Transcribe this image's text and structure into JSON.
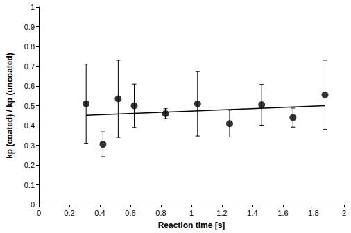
{
  "chart_data": {
    "type": "scatter",
    "x_label": "Reaction time [s]",
    "y_label": "kp (coated) / kp (uncoated)",
    "x": [
      0.31,
      0.42,
      0.52,
      0.625,
      0.83,
      1.04,
      1.25,
      1.46,
      1.665,
      1.875
    ],
    "values": [
      0.51,
      0.305,
      0.535,
      0.5,
      0.46,
      0.51,
      0.41,
      0.505,
      0.44,
      0.555
    ],
    "errors": [
      0.2,
      0.063,
      0.195,
      0.11,
      0.025,
      0.163,
      0.068,
      0.103,
      0.048,
      0.175
    ],
    "trend_line": {
      "x": [
        0.31,
        1.875
      ],
      "y": [
        0.452,
        0.5
      ]
    },
    "color": "#000000",
    "marker": "circle",
    "xlim": [
      0,
      2
    ],
    "xticks": [
      0,
      0.2,
      0.4,
      0.6,
      0.8,
      1,
      1.2,
      1.4,
      1.6,
      1.8,
      2
    ],
    "ylim": [
      0,
      1
    ],
    "yticks": [
      0,
      0.1,
      0.2,
      0.3,
      0.4,
      0.5,
      0.6,
      0.7,
      0.8,
      0.9,
      1
    ],
    "grid": false
  }
}
